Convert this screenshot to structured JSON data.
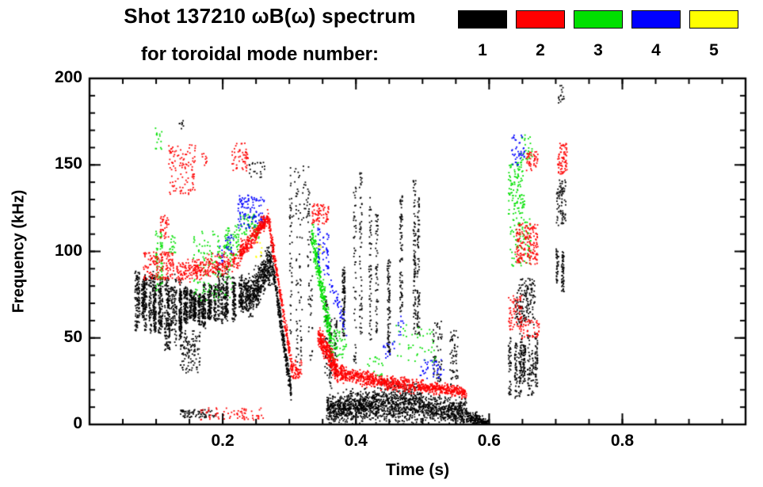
{
  "header": {
    "title_line1": "Shot 137210 ωB(ω) spectrum",
    "title_line2": "for toroidal mode number:"
  },
  "chart_data": {
    "type": "scatter",
    "title": "Shot 137210 ωB(ω) spectrum for toroidal mode number",
    "xlabel": "Time (s)",
    "ylabel": "Frequency (kHz)",
    "xlim": [
      0,
      0.985
    ],
    "ylim": [
      0,
      200
    ],
    "x_major_ticks": [
      0.2,
      0.4,
      0.6,
      0.8
    ],
    "x_tick_labels": [
      "0.2",
      "0.4",
      "0.6",
      "0.8"
    ],
    "x_minor_step": 0.05,
    "y_major_ticks": [
      0,
      50,
      100,
      150,
      200
    ],
    "y_tick_labels": [
      "0",
      "50",
      "100",
      "150",
      "200"
    ],
    "y_minor_step": 10,
    "grid": false,
    "legend_position": "top-right",
    "legend": {
      "items": [
        {
          "label": "1",
          "color": "#000000"
        },
        {
          "label": "2",
          "color": "#ff0000"
        },
        {
          "label": "3",
          "color": "#00e000"
        },
        {
          "label": "4",
          "color": "#0000ff"
        },
        {
          "label": "5",
          "color": "#ffff00"
        }
      ]
    },
    "clusters": [
      {
        "m": 1,
        "ty": "v",
        "t": [
          0.068,
          0.1
        ],
        "f": [
          52,
          93
        ],
        "n": 450,
        "k": 8
      },
      {
        "m": 1,
        "ty": "v",
        "t": [
          0.1,
          0.135
        ],
        "f": [
          42,
          88
        ],
        "n": 450,
        "k": 8
      },
      {
        "m": 1,
        "ty": "v",
        "t": [
          0.135,
          0.19
        ],
        "f": [
          55,
          82
        ],
        "n": 700,
        "k": 12
      },
      {
        "m": 1,
        "ty": "u",
        "t": [
          0.135,
          0.165
        ],
        "f": [
          30,
          55
        ],
        "n": 120
      },
      {
        "m": 1,
        "ty": "u",
        "t": [
          0.132,
          0.14
        ],
        "f": [
          170,
          177
        ],
        "n": 8
      },
      {
        "m": 1,
        "ty": "u",
        "t": [
          0.135,
          0.19
        ],
        "f": [
          4,
          9
        ],
        "n": 70
      },
      {
        "m": 1,
        "ty": "v",
        "t": [
          0.19,
          0.235
        ],
        "f": [
          58,
          92
        ],
        "n": 450,
        "k": 9
      },
      {
        "m": 1,
        "ty": "d",
        "t": [
          0.235,
          0.275
        ],
        "f": [
          72,
          95
        ],
        "s": 11,
        "n": 500
      },
      {
        "m": 1,
        "ty": "u",
        "t": [
          0.236,
          0.262
        ],
        "f": [
          143,
          152
        ],
        "n": 22
      },
      {
        "m": 1,
        "ty": "d",
        "t": [
          0.275,
          0.302
        ],
        "f": [
          88,
          18
        ],
        "s": 6,
        "n": 300
      },
      {
        "m": 1,
        "ty": "v",
        "t": [
          0.3,
          0.335
        ],
        "f": [
          20,
          145
        ],
        "n": 150,
        "k": 5
      },
      {
        "m": 1,
        "ty": "u",
        "t": [
          0.3,
          0.33
        ],
        "f": [
          118,
          150
        ],
        "n": 35
      },
      {
        "m": 1,
        "ty": "v",
        "t": [
          0.352,
          0.372
        ],
        "f": [
          18,
          78
        ],
        "n": 140,
        "k": 3
      },
      {
        "m": 1,
        "ty": "d",
        "t": [
          0.355,
          0.43
        ],
        "f": [
          9,
          12
        ],
        "s": 8,
        "n": 700
      },
      {
        "m": 1,
        "ty": "d",
        "t": [
          0.43,
          0.5
        ],
        "f": [
          13,
          12
        ],
        "s": 11,
        "n": 600
      },
      {
        "m": 1,
        "ty": "d",
        "t": [
          0.5,
          0.565
        ],
        "f": [
          10,
          7
        ],
        "s": 7,
        "n": 450
      },
      {
        "m": 1,
        "ty": "d",
        "t": [
          0.565,
          0.597
        ],
        "f": [
          5,
          1
        ],
        "s": 3.5,
        "n": 220
      },
      {
        "m": 1,
        "ty": "v",
        "t": [
          0.378,
          0.384
        ],
        "f": [
          25,
          120
        ],
        "n": 90,
        "k": 1
      },
      {
        "m": 1,
        "ty": "v",
        "t": [
          0.398,
          0.406
        ],
        "f": [
          25,
          150
        ],
        "n": 110,
        "k": 2
      },
      {
        "m": 1,
        "ty": "v",
        "t": [
          0.42,
          0.43
        ],
        "f": [
          28,
          147
        ],
        "n": 110,
        "k": 2
      },
      {
        "m": 1,
        "ty": "v",
        "t": [
          0.443,
          0.452
        ],
        "f": [
          30,
          118
        ],
        "n": 90,
        "k": 2
      },
      {
        "m": 1,
        "ty": "v",
        "t": [
          0.462,
          0.468
        ],
        "f": [
          35,
          150
        ],
        "n": 80,
        "k": 1
      },
      {
        "m": 1,
        "ty": "v",
        "t": [
          0.484,
          0.493
        ],
        "f": [
          18,
          157
        ],
        "n": 170,
        "k": 2
      },
      {
        "m": 1,
        "ty": "u",
        "t": [
          0.515,
          0.528
        ],
        "f": [
          25,
          60
        ],
        "n": 55
      },
      {
        "m": 1,
        "ty": "u",
        "t": [
          0.54,
          0.552
        ],
        "f": [
          22,
          55
        ],
        "n": 55
      },
      {
        "m": 1,
        "ty": "v",
        "t": [
          0.628,
          0.675
        ],
        "f": [
          12,
          55
        ],
        "n": 350,
        "k": 8
      },
      {
        "m": 1,
        "ty": "u",
        "t": [
          0.638,
          0.668
        ],
        "f": [
          58,
          85
        ],
        "n": 160
      },
      {
        "m": 1,
        "ty": "v",
        "t": [
          0.7,
          0.716
        ],
        "f": [
          75,
          102
        ],
        "n": 90,
        "k": 2
      },
      {
        "m": 1,
        "ty": "u",
        "t": [
          0.7,
          0.714
        ],
        "f": [
          115,
          142
        ],
        "n": 80
      },
      {
        "m": 1,
        "ty": "u",
        "t": [
          0.703,
          0.712
        ],
        "f": [
          186,
          197
        ],
        "n": 16
      },
      {
        "m": 2,
        "ty": "u",
        "t": [
          0.08,
          0.125
        ],
        "f": [
          84,
          100
        ],
        "n": 150
      },
      {
        "m": 2,
        "ty": "u",
        "t": [
          0.118,
          0.158
        ],
        "f": [
          133,
          162
        ],
        "n": 110
      },
      {
        "m": 2,
        "ty": "u",
        "t": [
          0.105,
          0.118
        ],
        "f": [
          108,
          122
        ],
        "n": 35
      },
      {
        "m": 2,
        "ty": "d",
        "t": [
          0.13,
          0.225
        ],
        "f": [
          88,
          95
        ],
        "s": 6,
        "n": 300
      },
      {
        "m": 2,
        "ty": "u",
        "t": [
          0.165,
          0.26
        ],
        "f": [
          3,
          10
        ],
        "n": 70
      },
      {
        "m": 2,
        "ty": "d",
        "t": [
          0.225,
          0.268
        ],
        "f": [
          100,
          120
        ],
        "s": 5,
        "n": 280
      },
      {
        "m": 2,
        "ty": "u",
        "t": [
          0.213,
          0.237
        ],
        "f": [
          147,
          163
        ],
        "n": 55
      },
      {
        "m": 2,
        "ty": "u",
        "t": [
          0.165,
          0.178
        ],
        "f": [
          149,
          157
        ],
        "n": 10
      },
      {
        "m": 2,
        "ty": "d",
        "t": [
          0.268,
          0.305
        ],
        "f": [
          118,
          28
        ],
        "s": 5,
        "n": 260
      },
      {
        "m": 2,
        "ty": "u",
        "t": [
          0.305,
          0.318
        ],
        "f": [
          26,
          38
        ],
        "n": 45
      },
      {
        "m": 2,
        "ty": "u",
        "t": [
          0.333,
          0.358
        ],
        "f": [
          116,
          128
        ],
        "n": 70
      },
      {
        "m": 2,
        "ty": "d",
        "t": [
          0.342,
          0.372
        ],
        "f": [
          52,
          30
        ],
        "s": 6,
        "n": 320
      },
      {
        "m": 2,
        "ty": "d",
        "t": [
          0.372,
          0.43
        ],
        "f": [
          30,
          26
        ],
        "s": 4,
        "n": 300
      },
      {
        "m": 2,
        "ty": "d",
        "t": [
          0.43,
          0.5
        ],
        "f": [
          25,
          22
        ],
        "s": 4,
        "n": 300
      },
      {
        "m": 2,
        "ty": "d",
        "t": [
          0.5,
          0.565
        ],
        "f": [
          22,
          19
        ],
        "s": 3,
        "n": 280
      },
      {
        "m": 2,
        "ty": "u",
        "t": [
          0.628,
          0.648
        ],
        "f": [
          55,
          75
        ],
        "n": 65
      },
      {
        "m": 2,
        "ty": "u",
        "t": [
          0.645,
          0.675
        ],
        "f": [
          50,
          62
        ],
        "n": 55
      },
      {
        "m": 2,
        "ty": "u",
        "t": [
          0.638,
          0.672
        ],
        "f": [
          93,
          117
        ],
        "n": 170
      },
      {
        "m": 2,
        "ty": "u",
        "t": [
          0.655,
          0.672
        ],
        "f": [
          147,
          158
        ],
        "n": 45
      },
      {
        "m": 2,
        "ty": "u",
        "t": [
          0.702,
          0.716
        ],
        "f": [
          145,
          163
        ],
        "n": 70
      },
      {
        "m": 3,
        "ty": "v",
        "t": [
          0.095,
          0.108
        ],
        "f": [
          68,
          112
        ],
        "n": 70,
        "k": 2
      },
      {
        "m": 3,
        "ty": "u",
        "t": [
          0.098,
          0.108
        ],
        "f": [
          158,
          172
        ],
        "n": 14
      },
      {
        "m": 3,
        "ty": "u",
        "t": [
          0.118,
          0.128
        ],
        "f": [
          98,
          110
        ],
        "n": 18
      },
      {
        "m": 3,
        "ty": "u",
        "t": [
          0.155,
          0.215
        ],
        "f": [
          72,
          112
        ],
        "n": 130
      },
      {
        "m": 3,
        "ty": "u",
        "t": [
          0.2,
          0.225
        ],
        "f": [
          98,
          116
        ],
        "n": 65
      },
      {
        "m": 3,
        "ty": "u",
        "t": [
          0.225,
          0.255
        ],
        "f": [
          108,
          122
        ],
        "n": 60
      },
      {
        "m": 3,
        "ty": "d",
        "t": [
          0.332,
          0.362
        ],
        "f": [
          112,
          48
        ],
        "s": 10,
        "n": 300
      },
      {
        "m": 3,
        "ty": "u",
        "t": [
          0.36,
          0.385
        ],
        "f": [
          38,
          55
        ],
        "n": 55
      },
      {
        "m": 3,
        "ty": "u",
        "t": [
          0.415,
          0.44
        ],
        "f": [
          28,
          40
        ],
        "n": 18
      },
      {
        "m": 3,
        "ty": "u",
        "t": [
          0.455,
          0.52
        ],
        "f": [
          35,
          58
        ],
        "n": 45
      },
      {
        "m": 3,
        "ty": "u",
        "t": [
          0.628,
          0.652
        ],
        "f": [
          122,
          152
        ],
        "n": 110
      },
      {
        "m": 3,
        "ty": "u",
        "t": [
          0.63,
          0.662
        ],
        "f": [
          92,
          120
        ],
        "n": 80
      },
      {
        "m": 3,
        "ty": "u",
        "t": [
          0.643,
          0.665
        ],
        "f": [
          153,
          170
        ],
        "n": 28
      },
      {
        "m": 4,
        "ty": "u",
        "t": [
          0.222,
          0.262
        ],
        "f": [
          113,
          133
        ],
        "n": 120
      },
      {
        "m": 4,
        "ty": "u",
        "t": [
          0.203,
          0.215
        ],
        "f": [
          98,
          110
        ],
        "n": 18
      },
      {
        "m": 4,
        "ty": "u",
        "t": [
          0.19,
          0.2
        ],
        "f": [
          92,
          104
        ],
        "n": 12
      },
      {
        "m": 4,
        "ty": "v",
        "t": [
          0.338,
          0.36
        ],
        "f": [
          82,
          116
        ],
        "n": 60,
        "k": 3
      },
      {
        "m": 4,
        "ty": "d",
        "t": [
          0.358,
          0.385
        ],
        "f": [
          85,
          55
        ],
        "s": 6,
        "n": 45
      },
      {
        "m": 4,
        "ty": "u",
        "t": [
          0.44,
          0.458
        ],
        "f": [
          38,
          50
        ],
        "n": 16
      },
      {
        "m": 4,
        "ty": "u",
        "t": [
          0.462,
          0.472
        ],
        "f": [
          52,
          64
        ],
        "n": 10
      },
      {
        "m": 4,
        "ty": "u",
        "t": [
          0.495,
          0.532
        ],
        "f": [
          27,
          38
        ],
        "n": 40
      },
      {
        "m": 4,
        "ty": "u",
        "t": [
          0.633,
          0.652
        ],
        "f": [
          150,
          168
        ],
        "n": 40
      },
      {
        "m": 5,
        "ty": "u",
        "t": [
          0.248,
          0.258
        ],
        "f": [
          97,
          106
        ],
        "n": 8
      },
      {
        "m": 5,
        "ty": "u",
        "t": [
          0.343,
          0.352
        ],
        "f": [
          98,
          106
        ],
        "n": 5
      }
    ]
  }
}
